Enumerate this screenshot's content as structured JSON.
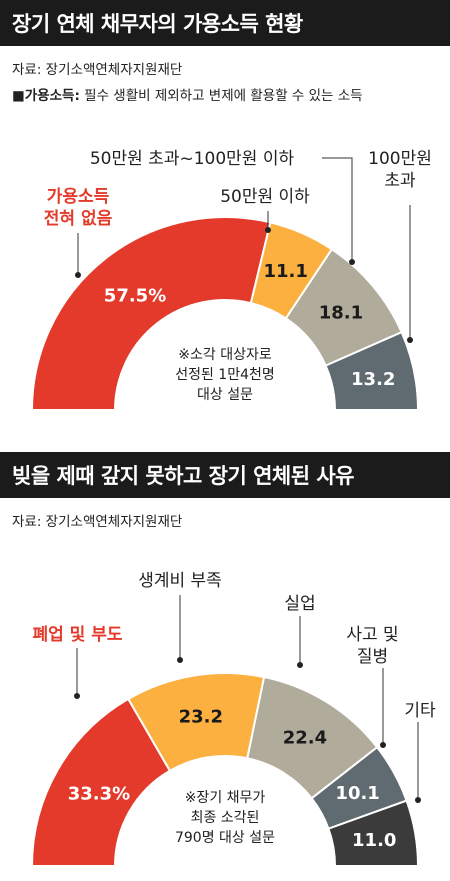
{
  "chart_data": [
    {
      "type": "pie",
      "title": "장기 연체 채무자의 가용소득 현황",
      "source": "자료: 장기소액연체자지원재단",
      "definition_term": "가용소득:",
      "definition_text": " 필수 생활비 제외하고 변제에 활용할 수 있는 소득",
      "note_lines": [
        "※소각 대상자로",
        "선정된 1만4천명",
        "대상 설문"
      ],
      "categories": [
        [
          "가용소득",
          "전혀 없음"
        ],
        [
          "50만원 이하"
        ],
        [
          "50만원 초과~100만원 이하"
        ],
        [
          "100만원",
          "초과"
        ]
      ],
      "values": [
        57.5,
        11.1,
        18.1,
        13.2
      ],
      "value_labels": [
        "57.5%",
        "11.1",
        "18.1",
        "13.2"
      ],
      "colors": [
        "#e43a2b",
        "#fbb040",
        "#b1ab9b",
        "#5f6b70"
      ],
      "label_colors": [
        "#e43a2b",
        "#222222",
        "#222222",
        "#222222"
      ]
    },
    {
      "type": "pie",
      "title": "빚을 제때 갚지 못하고 장기 연체된 사유",
      "source": "자료: 장기소액연체자지원재단",
      "note_lines": [
        "※장기 채무가",
        "최종 소각된",
        "790명 대상 설문"
      ],
      "categories": [
        [
          "폐업 및 부도"
        ],
        [
          "생계비 부족"
        ],
        [
          "실업"
        ],
        [
          "사고 및",
          "질병"
        ],
        [
          "기타"
        ]
      ],
      "values": [
        33.3,
        23.2,
        22.4,
        10.1,
        11.0
      ],
      "value_labels": [
        "33.3%",
        "23.2",
        "22.4",
        "10.1",
        "11.0"
      ],
      "colors": [
        "#e43a2b",
        "#fbb040",
        "#b1ab9b",
        "#5f6b70",
        "#3b3b3b"
      ],
      "label_colors": [
        "#e43a2b",
        "#222222",
        "#222222",
        "#222222",
        "#222222"
      ]
    }
  ]
}
